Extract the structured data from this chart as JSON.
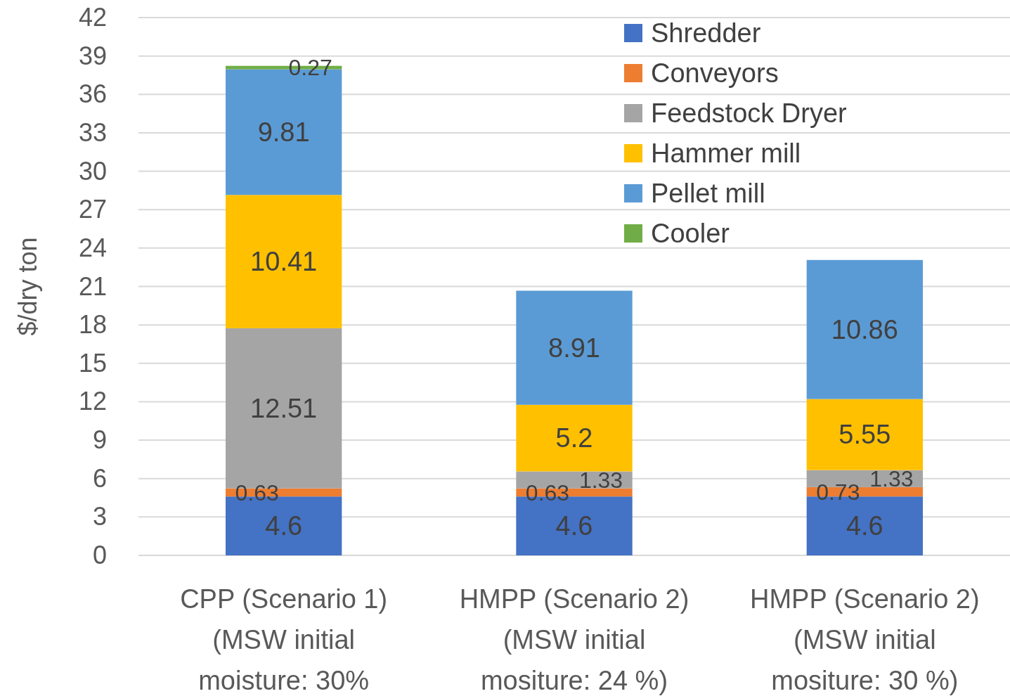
{
  "chart_data": {
    "type": "bar",
    "stacked": true,
    "ylabel": "$/dry ton",
    "categories": [
      "CPP (Scenario 1) (MSW initial moisture: 30%",
      "HMPP (Scenario 2) (MSW initial mositure: 24 %)",
      "HMPP (Scenario 2) (MSW initial mositure: 30 %)"
    ],
    "series": [
      {
        "name": "Shredder",
        "color": "#4472c4",
        "values": [
          4.6,
          4.6,
          4.6
        ]
      },
      {
        "name": "Conveyors",
        "color": "#ed7d31",
        "values": [
          0.63,
          0.63,
          0.73
        ]
      },
      {
        "name": "Feedstock Dryer",
        "color": "#a5a5a5",
        "values": [
          12.51,
          1.33,
          1.33
        ]
      },
      {
        "name": "Hammer mill",
        "color": "#ffc000",
        "values": [
          10.41,
          5.2,
          5.55
        ]
      },
      {
        "name": "Pellet mill",
        "color": "#5b9bd5",
        "values": [
          9.81,
          8.91,
          10.86
        ]
      },
      {
        "name": "Cooler",
        "color": "#70ad47",
        "values": [
          0.27,
          null,
          null
        ]
      }
    ],
    "ylim": [
      0,
      42
    ],
    "yticks": [
      0,
      3,
      6,
      9,
      12,
      15,
      18,
      21,
      24,
      27,
      30,
      33,
      36,
      39,
      42
    ],
    "grid": "y",
    "legend": "top right",
    "data_labels": true
  }
}
